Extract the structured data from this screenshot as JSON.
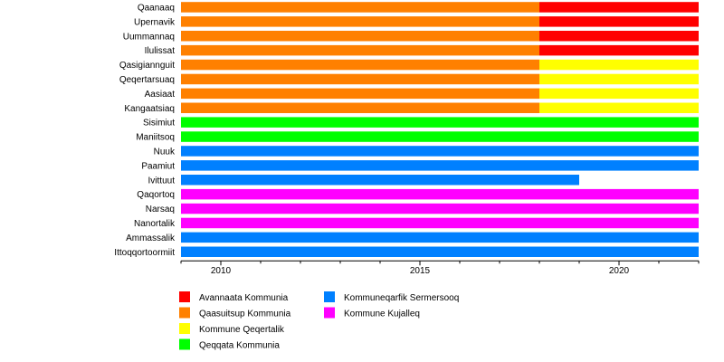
{
  "chart_data": {
    "type": "timeline",
    "x_ticks": [
      2010,
      2015,
      2020
    ],
    "xlim": [
      2009.0,
      2022.0
    ],
    "colors": {
      "avannaata": "#ff0000",
      "qaasuitsup": "#ff8000",
      "qeqertalik": "#ffff00",
      "qeqqata": "#00ff00",
      "sermersooq": "#0080ff",
      "kujalleq": "#ff00ff"
    },
    "rows": [
      {
        "label": "Qaanaaq",
        "segments": [
          {
            "start": 2009.0,
            "end": 2018.0,
            "municipality": "qaasuitsup"
          },
          {
            "start": 2018.0,
            "end": 2022.0,
            "municipality": "avannaata"
          }
        ]
      },
      {
        "label": "Upernavik",
        "segments": [
          {
            "start": 2009.0,
            "end": 2018.0,
            "municipality": "qaasuitsup"
          },
          {
            "start": 2018.0,
            "end": 2022.0,
            "municipality": "avannaata"
          }
        ]
      },
      {
        "label": "Uummannaq",
        "segments": [
          {
            "start": 2009.0,
            "end": 2018.0,
            "municipality": "qaasuitsup"
          },
          {
            "start": 2018.0,
            "end": 2022.0,
            "municipality": "avannaata"
          }
        ]
      },
      {
        "label": "Ilulissat",
        "segments": [
          {
            "start": 2009.0,
            "end": 2018.0,
            "municipality": "qaasuitsup"
          },
          {
            "start": 2018.0,
            "end": 2022.0,
            "municipality": "avannaata"
          }
        ]
      },
      {
        "label": "Qasigiannguit",
        "segments": [
          {
            "start": 2009.0,
            "end": 2018.0,
            "municipality": "qaasuitsup"
          },
          {
            "start": 2018.0,
            "end": 2022.0,
            "municipality": "qeqertalik"
          }
        ]
      },
      {
        "label": "Qeqertarsuaq",
        "segments": [
          {
            "start": 2009.0,
            "end": 2018.0,
            "municipality": "qaasuitsup"
          },
          {
            "start": 2018.0,
            "end": 2022.0,
            "municipality": "qeqertalik"
          }
        ]
      },
      {
        "label": "Aasiaat",
        "segments": [
          {
            "start": 2009.0,
            "end": 2018.0,
            "municipality": "qaasuitsup"
          },
          {
            "start": 2018.0,
            "end": 2022.0,
            "municipality": "qeqertalik"
          }
        ]
      },
      {
        "label": "Kangaatsiaq",
        "segments": [
          {
            "start": 2009.0,
            "end": 2018.0,
            "municipality": "qaasuitsup"
          },
          {
            "start": 2018.0,
            "end": 2022.0,
            "municipality": "qeqertalik"
          }
        ]
      },
      {
        "label": "Sisimiut",
        "segments": [
          {
            "start": 2009.0,
            "end": 2022.0,
            "municipality": "qeqqata"
          }
        ]
      },
      {
        "label": "Maniitsoq",
        "segments": [
          {
            "start": 2009.0,
            "end": 2022.0,
            "municipality": "qeqqata"
          }
        ]
      },
      {
        "label": "Nuuk",
        "segments": [
          {
            "start": 2009.0,
            "end": 2022.0,
            "municipality": "sermersooq"
          }
        ]
      },
      {
        "label": "Paamiut",
        "segments": [
          {
            "start": 2009.0,
            "end": 2022.0,
            "municipality": "sermersooq"
          }
        ]
      },
      {
        "label": "Ivittuut",
        "segments": [
          {
            "start": 2009.0,
            "end": 2019.0,
            "municipality": "sermersooq"
          }
        ]
      },
      {
        "label": "Qaqortoq",
        "segments": [
          {
            "start": 2009.0,
            "end": 2022.0,
            "municipality": "kujalleq"
          }
        ]
      },
      {
        "label": "Narsaq",
        "segments": [
          {
            "start": 2009.0,
            "end": 2022.0,
            "municipality": "kujalleq"
          }
        ]
      },
      {
        "label": "Nanortalik",
        "segments": [
          {
            "start": 2009.0,
            "end": 2022.0,
            "municipality": "kujalleq"
          }
        ]
      },
      {
        "label": "Ammassalik",
        "segments": [
          {
            "start": 2009.0,
            "end": 2022.0,
            "municipality": "sermersooq"
          }
        ]
      },
      {
        "label": "Ittoqqortoormiit",
        "segments": [
          {
            "start": 2009.0,
            "end": 2022.0,
            "municipality": "sermersooq"
          }
        ]
      }
    ],
    "legend": [
      {
        "key": "avannaata",
        "label": "Avannaata Kommunia"
      },
      {
        "key": "qaasuitsup",
        "label": "Qaasuitsup Kommunia"
      },
      {
        "key": "qeqertalik",
        "label": "Kommune Qeqertalik"
      },
      {
        "key": "qeqqata",
        "label": "Qeqqata Kommunia"
      },
      {
        "key": "sermersooq",
        "label": "Kommuneqarfik Sermersooq"
      },
      {
        "key": "kujalleq",
        "label": "Kommune Kujalleq"
      }
    ]
  }
}
